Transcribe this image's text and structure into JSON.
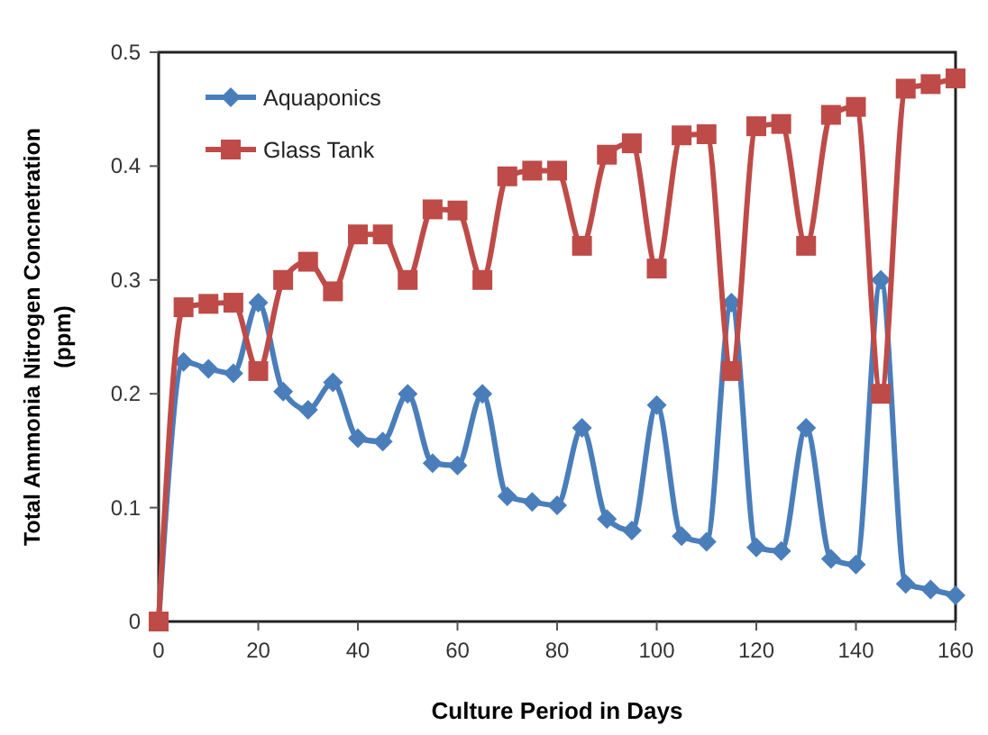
{
  "chart_data": {
    "type": "line",
    "xlabel": "Culture Period in Days",
    "ylabel": "Total Ammonia Nitrogen Concnetration\n(ppm)",
    "x": [
      0,
      5,
      10,
      15,
      20,
      25,
      30,
      35,
      40,
      45,
      50,
      55,
      60,
      65,
      70,
      75,
      80,
      85,
      90,
      95,
      100,
      105,
      110,
      115,
      120,
      125,
      130,
      135,
      140,
      145,
      150,
      155,
      160
    ],
    "series": [
      {
        "name": "Aquaponics",
        "color": "#4a7ebb",
        "marker": "diamond",
        "values": [
          0,
          0.228,
          0.222,
          0.218,
          0.28,
          0.202,
          0.186,
          0.21,
          0.161,
          0.158,
          0.2,
          0.139,
          0.137,
          0.2,
          0.11,
          0.105,
          0.102,
          0.17,
          0.09,
          0.08,
          0.19,
          0.075,
          0.07,
          0.28,
          0.065,
          0.062,
          0.17,
          0.055,
          0.05,
          0.3,
          0.033,
          0.028,
          0.023
        ]
      },
      {
        "name": "Glass Tank",
        "color": "#be4b48",
        "marker": "square",
        "values": [
          0,
          0.276,
          0.279,
          0.28,
          0.22,
          0.3,
          0.316,
          0.29,
          0.34,
          0.34,
          0.3,
          0.362,
          0.361,
          0.3,
          0.391,
          0.396,
          0.396,
          0.33,
          0.41,
          0.42,
          0.31,
          0.427,
          0.428,
          0.22,
          0.435,
          0.437,
          0.33,
          0.445,
          0.452,
          0.2,
          0.468,
          0.472,
          0.477
        ]
      }
    ],
    "xlim": [
      0,
      160
    ],
    "xticks": [
      0,
      20,
      40,
      60,
      80,
      100,
      120,
      140,
      160
    ],
    "ylim": [
      0,
      0.5
    ],
    "yticks": [
      0,
      0.1,
      0.2,
      0.3,
      0.4,
      0.5
    ],
    "grid": false,
    "legend": "top left",
    "line_style": "solid"
  }
}
